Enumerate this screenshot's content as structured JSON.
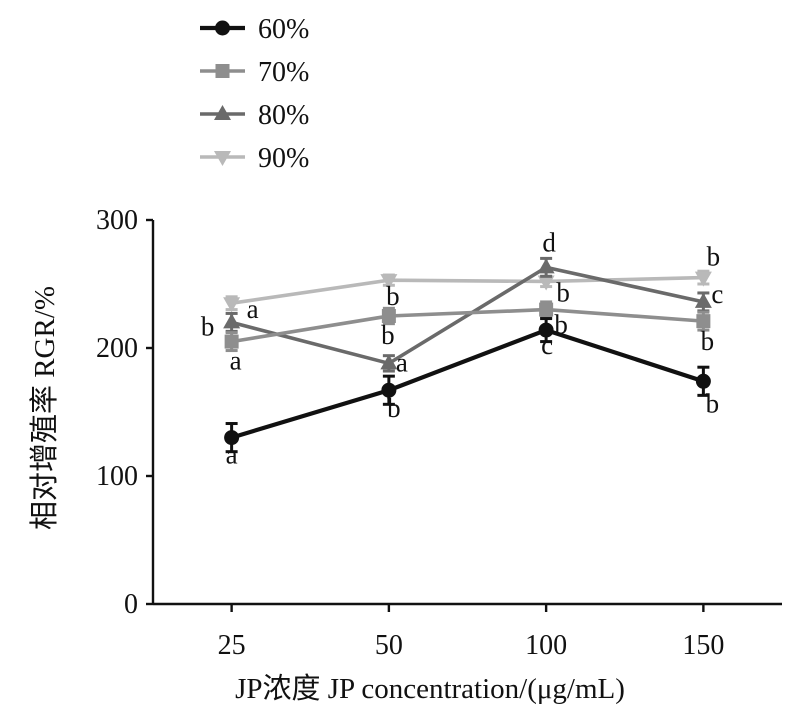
{
  "chart_data": {
    "type": "line",
    "categories": [
      "25",
      "50",
      "100",
      "150"
    ],
    "xlabel": "JP浓度 JP concentration/(μg/mL)",
    "ylabel": "相对增殖率 RGR/%",
    "ylim": [
      0,
      300
    ],
    "yticks": [
      0,
      100,
      200,
      300
    ],
    "grid": false,
    "legend": "top-left",
    "series": [
      {
        "name": "60%",
        "marker": "circle",
        "color": "#111111",
        "values": [
          130,
          167,
          214,
          174
        ],
        "errors": [
          11,
          11,
          9,
          11
        ],
        "letters": [
          "a",
          "b",
          "c",
          "b"
        ]
      },
      {
        "name": "70%",
        "marker": "square",
        "color": "#8e8e8e",
        "values": [
          205,
          225,
          230,
          221
        ],
        "errors": [
          7,
          6,
          6,
          7
        ],
        "letters": [
          "a",
          "b",
          "b",
          "b"
        ]
      },
      {
        "name": "80%",
        "marker": "triangle-up",
        "color": "#6a6a6a",
        "values": [
          220,
          188,
          263,
          236
        ],
        "errors": [
          7,
          6,
          7,
          7
        ],
        "letters": [
          "b",
          "a",
          "d",
          "c"
        ]
      },
      {
        "name": "90%",
        "marker": "triangle-down",
        "color": "#b9b9b9",
        "values": [
          235,
          253,
          252,
          255
        ],
        "errors": [
          5,
          4,
          4,
          5
        ],
        "letters": [
          "a",
          "b",
          "b",
          "b"
        ]
      }
    ]
  }
}
